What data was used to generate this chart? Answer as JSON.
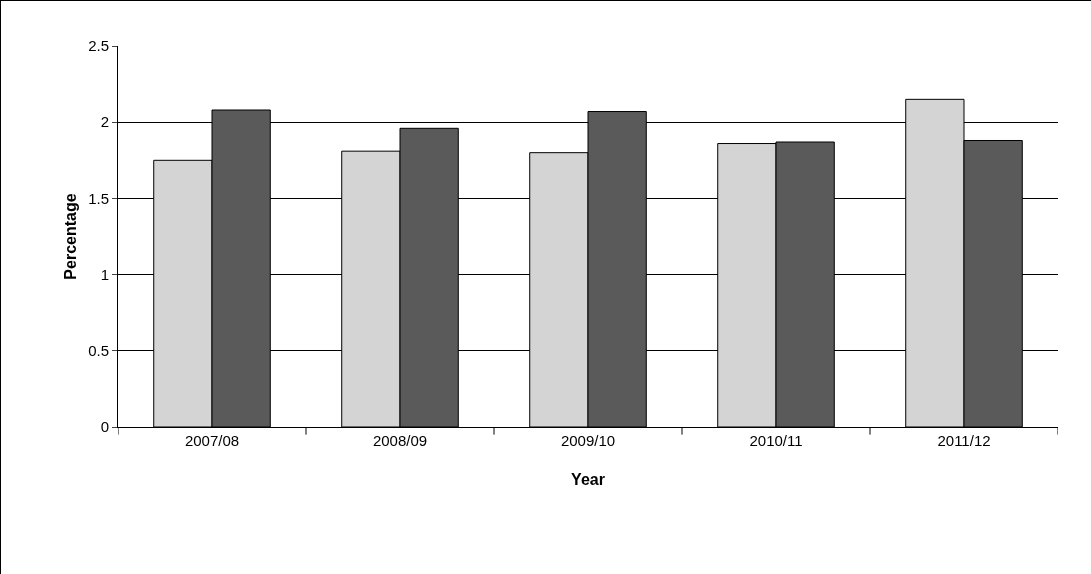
{
  "chart_data": {
    "type": "bar",
    "xlabel": "Year",
    "ylabel": "Percentage",
    "categories": [
      "2007/08",
      "2008/09",
      "2009/10",
      "2010/11",
      "2011/12"
    ],
    "series": [
      {
        "color": "#d4d4d4",
        "values": [
          1.75,
          1.81,
          1.8,
          1.86,
          2.15
        ]
      },
      {
        "color": "#5a5a5a",
        "values": [
          2.08,
          1.96,
          2.07,
          1.87,
          1.88
        ]
      }
    ],
    "ylim": [
      0,
      2.5
    ],
    "yticks": [
      0,
      0.5,
      1,
      1.5,
      2,
      2.5
    ],
    "grid": "y"
  }
}
